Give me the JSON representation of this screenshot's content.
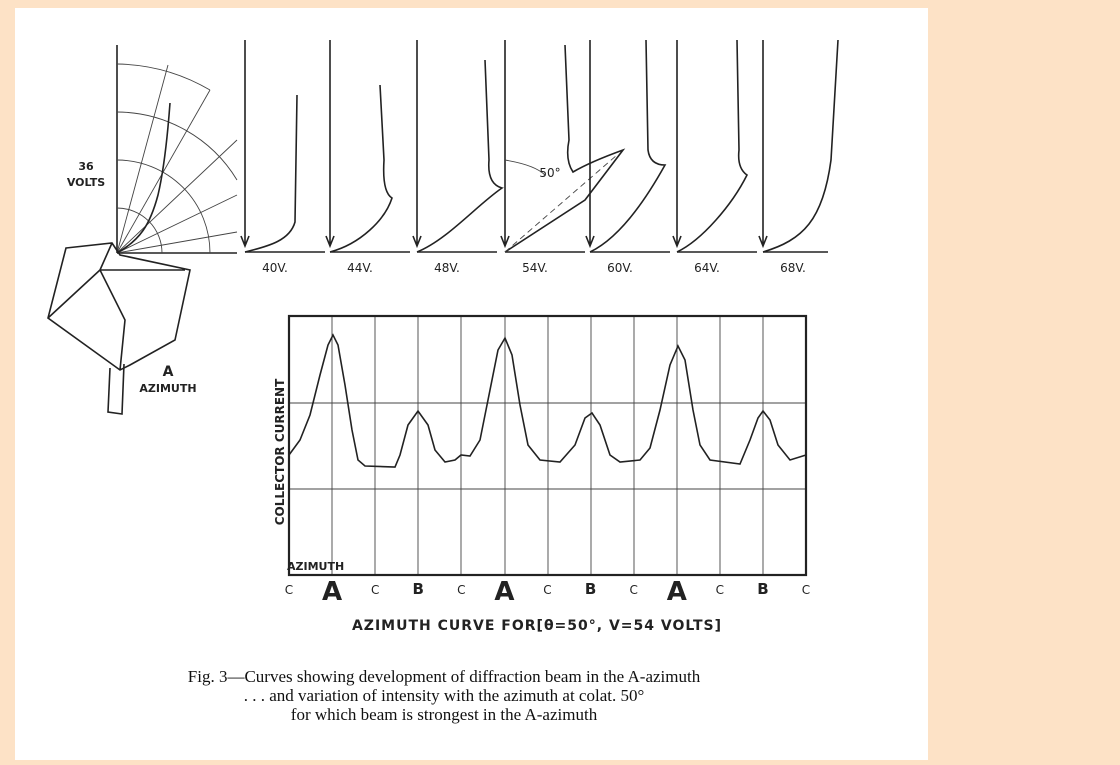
{
  "figure": {
    "polar_label": [
      "36",
      "VOLTS"
    ],
    "voltage_labels": [
      "40V.",
      "44V.",
      "48V.",
      "54V.",
      "60V.",
      "64V.",
      "68V."
    ],
    "angle_label": "50°",
    "crystal_label": [
      "A",
      "AZIMUTH"
    ],
    "y_axis_label": "COLLECTOR CURRENT",
    "x_axis_label": "AZIMUTH",
    "azimuth_labels": [
      "C",
      "A",
      "C",
      "B",
      "C",
      "A",
      "C",
      "B",
      "C",
      "A",
      "C",
      "B",
      "C"
    ],
    "plot_title": "AZIMUTH CURVE FOR[θ=50°, V=54 VOLTS]"
  },
  "caption": [
    "Fig. 3—Curves showing development of diffraction beam in the A-azimuth",
    ". . . and variation of intensity with the azimuth at colat. 50°",
    "for which beam is strongest in the A-azimuth"
  ]
}
